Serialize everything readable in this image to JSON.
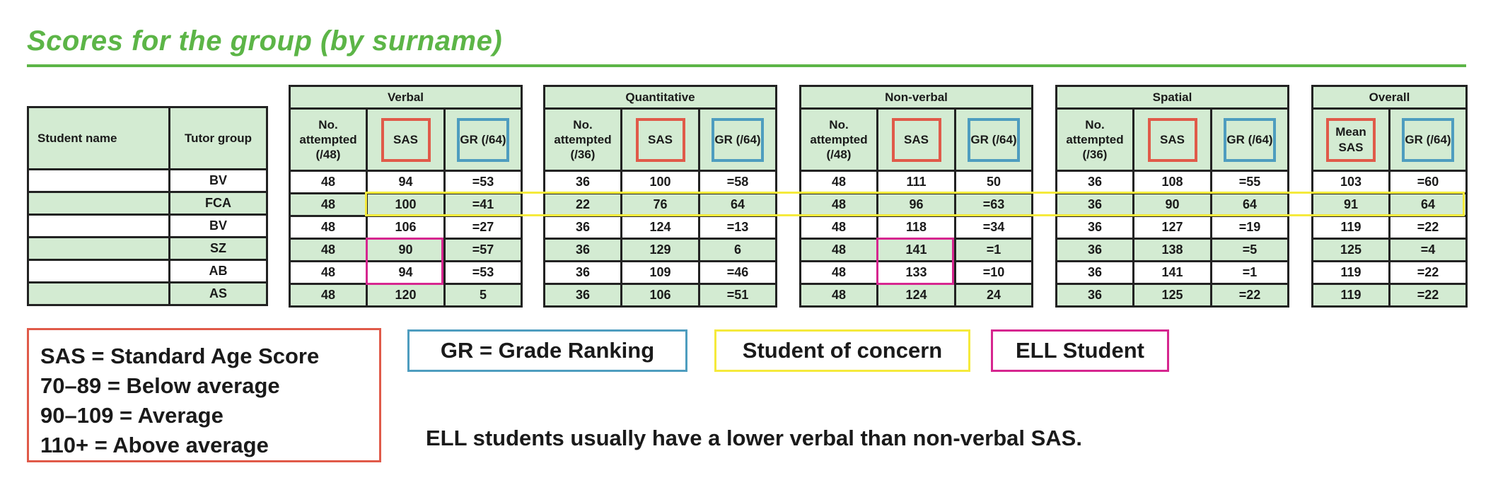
{
  "title": "Scores for the group (by surname)",
  "colors": {
    "green_title": "#5cb547",
    "cell_green": "#d3ebd2",
    "sas_red": "#e05a49",
    "gr_blue": "#4e9dbf",
    "concern_yellow": "#f5ea3c",
    "ell_magenta": "#d6268f"
  },
  "names_table": {
    "headers": [
      "Student name",
      "Tutor group"
    ],
    "rows": [
      {
        "name": "",
        "tutor": "BV"
      },
      {
        "name": "",
        "tutor": "FCA"
      },
      {
        "name": "",
        "tutor": "BV"
      },
      {
        "name": "",
        "tutor": "SZ"
      },
      {
        "name": "",
        "tutor": "AB"
      },
      {
        "name": "",
        "tutor": "AS"
      }
    ]
  },
  "sections": [
    {
      "title": "Verbal",
      "attempted_label": "No. attempted (/48)",
      "sas_label": "SAS",
      "gr_label": "GR (/64)",
      "rows": [
        [
          "48",
          "94",
          "=53"
        ],
        [
          "48",
          "100",
          "=41"
        ],
        [
          "48",
          "106",
          "=27"
        ],
        [
          "48",
          "90",
          "=57"
        ],
        [
          "48",
          "94",
          "=53"
        ],
        [
          "48",
          "120",
          "5"
        ]
      ]
    },
    {
      "title": "Quantitative",
      "attempted_label": "No. attempted (/36)",
      "sas_label": "SAS",
      "gr_label": "GR (/64)",
      "rows": [
        [
          "36",
          "100",
          "=58"
        ],
        [
          "22",
          "76",
          "64"
        ],
        [
          "36",
          "124",
          "=13"
        ],
        [
          "36",
          "129",
          "6"
        ],
        [
          "36",
          "109",
          "=46"
        ],
        [
          "36",
          "106",
          "=51"
        ]
      ]
    },
    {
      "title": "Non-verbal",
      "attempted_label": "No. attempted (/48)",
      "sas_label": "SAS",
      "gr_label": "GR (/64)",
      "rows": [
        [
          "48",
          "111",
          "50"
        ],
        [
          "48",
          "96",
          "=63"
        ],
        [
          "48",
          "118",
          "=34"
        ],
        [
          "48",
          "141",
          "=1"
        ],
        [
          "48",
          "133",
          "=10"
        ],
        [
          "48",
          "124",
          "24"
        ]
      ]
    },
    {
      "title": "Spatial",
      "attempted_label": "No. attempted (/36)",
      "sas_label": "SAS",
      "gr_label": "GR (/64)",
      "rows": [
        [
          "36",
          "108",
          "=55"
        ],
        [
          "36",
          "90",
          "64"
        ],
        [
          "36",
          "127",
          "=19"
        ],
        [
          "36",
          "138",
          "=5"
        ],
        [
          "36",
          "141",
          "=1"
        ],
        [
          "36",
          "125",
          "=22"
        ]
      ]
    }
  ],
  "overall": {
    "title": "Overall",
    "mean_label": "Mean SAS",
    "gr_label": "GR (/64)",
    "rows": [
      [
        "103",
        "=60"
      ],
      [
        "91",
        "64"
      ],
      [
        "119",
        "=22"
      ],
      [
        "125",
        "=4"
      ],
      [
        "119",
        "=22"
      ],
      [
        "119",
        "=22"
      ]
    ]
  },
  "legend": {
    "sas_lines": [
      "SAS = Standard Age Score",
      "70–89 = Below average",
      "90–109 = Average",
      "110+ = Above average"
    ],
    "gr": "GR = Grade Ranking",
    "concern": "Student of concern",
    "ell": "ELL Student"
  },
  "note": "ELL students usually have a lower verbal than non-verbal SAS."
}
